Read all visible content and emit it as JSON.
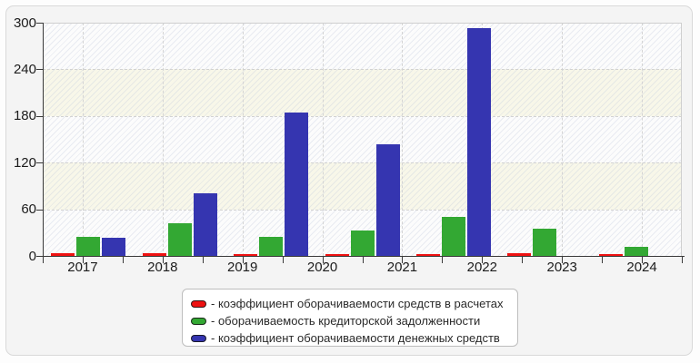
{
  "chart_data": {
    "type": "bar",
    "title": "",
    "x_labels": [
      "2017",
      "2018",
      "2019",
      "2020",
      "2021",
      "2022",
      "2023",
      "2024"
    ],
    "y_ticks": [
      0,
      60,
      120,
      180,
      240,
      300
    ],
    "ylim": [
      0,
      300
    ],
    "n_bar_groups": 7,
    "grid": "dashed",
    "legend_position": "bottom",
    "series": [
      {
        "name": "коэффициент оборачиваемости средств в расчетах",
        "color": "#ee1111",
        "values": [
          4,
          3,
          2,
          2,
          2,
          4,
          2
        ]
      },
      {
        "name": "оборачиваемость кредиторской задолженности",
        "color": "#33a833",
        "values": [
          24,
          42,
          25,
          33,
          50,
          35,
          12
        ]
      },
      {
        "name": "коэффициент оборачиваемости денежных средств",
        "color": "#3535b0",
        "values": [
          23,
          80,
          185,
          144,
          293,
          0,
          0
        ]
      }
    ]
  },
  "legend": {
    "items": [
      {
        "label": "- коэффициент оборачиваемости средств в расчетах",
        "color": "#ee1111"
      },
      {
        "label": "- оборачиваемость кредиторской задолженности",
        "color": "#33a833"
      },
      {
        "label": "- коэффициент оборачиваемости денежных средств",
        "color": "#3535b0"
      }
    ]
  }
}
